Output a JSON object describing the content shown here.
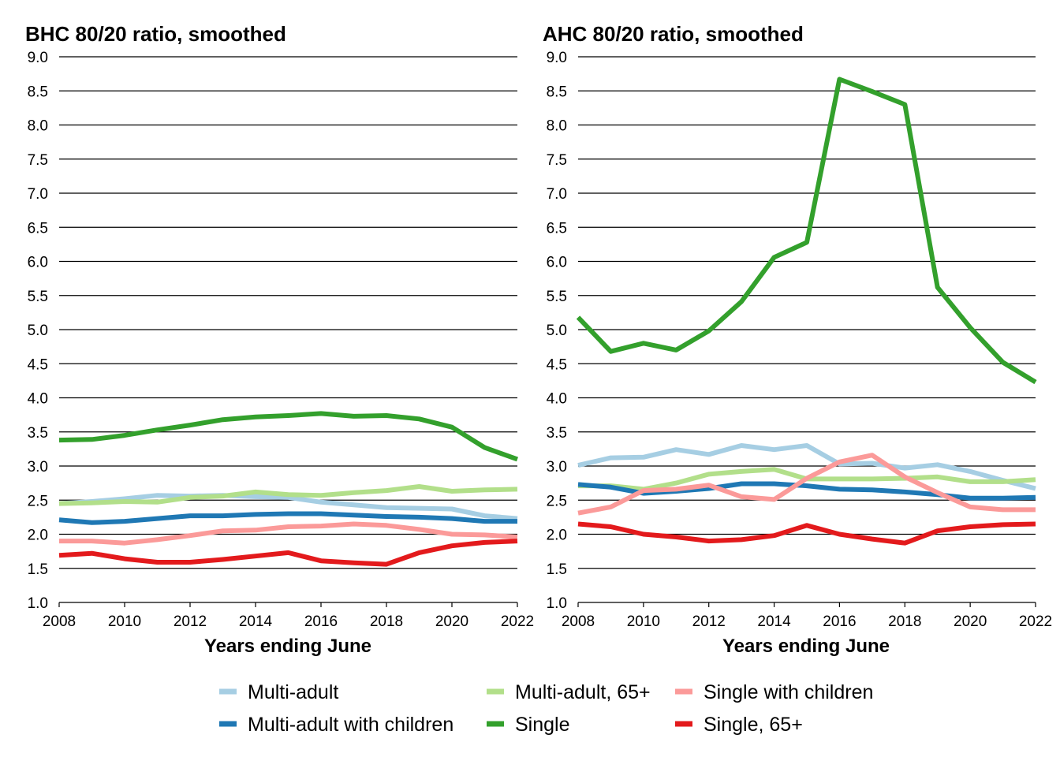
{
  "chart_data": [
    {
      "type": "line",
      "title": "BHC 80/20 ratio, smoothed",
      "xlabel": "Years ending June",
      "ylabel": "",
      "xlim": [
        2008,
        2022
      ],
      "ylim": [
        1.0,
        9.0
      ],
      "x_ticks": [
        "2008",
        "2010",
        "2012",
        "2014",
        "2016",
        "2018",
        "2020",
        "2022"
      ],
      "y_ticks": [
        "1.0",
        "1.5",
        "2.0",
        "2.5",
        "3.0",
        "3.5",
        "4.0",
        "4.5",
        "5.0",
        "5.5",
        "6.0",
        "6.5",
        "7.0",
        "7.5",
        "8.0",
        "8.5",
        "9.0"
      ],
      "grid": "horizontal",
      "x": [
        2008,
        2009,
        2010,
        2011,
        2012,
        2013,
        2014,
        2015,
        2016,
        2017,
        2018,
        2019,
        2020,
        2021,
        2022
      ],
      "series": [
        {
          "name": "Multi-adult",
          "color": "#a6cee3",
          "values": [
            2.45,
            2.48,
            2.52,
            2.57,
            2.56,
            2.57,
            2.55,
            2.54,
            2.47,
            2.43,
            2.39,
            2.38,
            2.37,
            2.27,
            2.23
          ]
        },
        {
          "name": "Multi-adult with children",
          "color": "#1f78b4",
          "values": [
            2.21,
            2.17,
            2.19,
            2.23,
            2.27,
            2.27,
            2.29,
            2.3,
            2.3,
            2.28,
            2.26,
            2.25,
            2.23,
            2.19,
            2.19
          ]
        },
        {
          "name": "Multi-adult, 65+",
          "color": "#b2df8a",
          "values": [
            2.45,
            2.46,
            2.48,
            2.47,
            2.54,
            2.56,
            2.62,
            2.58,
            2.57,
            2.61,
            2.64,
            2.7,
            2.63,
            2.65,
            2.66
          ]
        },
        {
          "name": "Single",
          "color": "#33a02c",
          "values": [
            3.38,
            3.39,
            3.45,
            3.53,
            3.6,
            3.68,
            3.72,
            3.74,
            3.77,
            3.73,
            3.74,
            3.69,
            3.57,
            3.27,
            3.1
          ]
        },
        {
          "name": "Single with children",
          "color": "#fb9a99",
          "values": [
            1.9,
            1.9,
            1.87,
            1.92,
            1.98,
            2.05,
            2.06,
            2.11,
            2.12,
            2.15,
            2.13,
            2.07,
            2.0,
            1.99,
            1.96
          ]
        },
        {
          "name": "Single, 65+",
          "color": "#e31a1c",
          "values": [
            1.69,
            1.72,
            1.64,
            1.59,
            1.59,
            1.63,
            1.68,
            1.73,
            1.61,
            1.58,
            1.56,
            1.73,
            1.83,
            1.88,
            1.9
          ]
        }
      ]
    },
    {
      "type": "line",
      "title": "AHC 80/20 ratio, smoothed",
      "xlabel": "Years ending June",
      "ylabel": "",
      "xlim": [
        2008,
        2022
      ],
      "ylim": [
        1.0,
        9.0
      ],
      "x_ticks": [
        "2008",
        "2010",
        "2012",
        "2014",
        "2016",
        "2018",
        "2020",
        "2022"
      ],
      "y_ticks": [
        "1.0",
        "1.5",
        "2.0",
        "2.5",
        "3.0",
        "3.5",
        "4.0",
        "4.5",
        "5.0",
        "5.5",
        "6.0",
        "6.5",
        "7.0",
        "7.5",
        "8.0",
        "8.5",
        "9.0"
      ],
      "grid": "horizontal",
      "x": [
        2008,
        2009,
        2010,
        2011,
        2012,
        2013,
        2014,
        2015,
        2016,
        2017,
        2018,
        2019,
        2020,
        2021,
        2022
      ],
      "series": [
        {
          "name": "Multi-adult",
          "color": "#a6cee3",
          "values": [
            3.01,
            3.12,
            3.13,
            3.24,
            3.17,
            3.3,
            3.24,
            3.3,
            3.03,
            3.04,
            2.97,
            3.02,
            2.92,
            2.79,
            2.67
          ]
        },
        {
          "name": "Multi-adult with children",
          "color": "#1f78b4",
          "values": [
            2.73,
            2.69,
            2.6,
            2.63,
            2.67,
            2.74,
            2.74,
            2.71,
            2.66,
            2.65,
            2.62,
            2.58,
            2.53,
            2.53,
            2.54
          ]
        },
        {
          "name": "Multi-adult, 65+",
          "color": "#b2df8a",
          "values": [
            2.71,
            2.71,
            2.66,
            2.75,
            2.88,
            2.92,
            2.95,
            2.81,
            2.81,
            2.81,
            2.82,
            2.84,
            2.77,
            2.77,
            2.8
          ]
        },
        {
          "name": "Single",
          "color": "#33a02c",
          "values": [
            5.18,
            4.68,
            4.8,
            4.7,
            4.98,
            5.41,
            6.06,
            6.28,
            8.67,
            8.49,
            8.3,
            5.62,
            5.03,
            4.52,
            4.23
          ]
        },
        {
          "name": "Single with children",
          "color": "#fb9a99",
          "values": [
            2.31,
            2.4,
            2.64,
            2.66,
            2.72,
            2.55,
            2.51,
            2.82,
            3.06,
            3.16,
            2.84,
            2.61,
            2.4,
            2.36,
            2.36
          ]
        },
        {
          "name": "Single, 65+",
          "color": "#e31a1c",
          "values": [
            2.15,
            2.11,
            2.0,
            1.96,
            1.9,
            1.92,
            1.98,
            2.13,
            2.0,
            1.93,
            1.87,
            2.05,
            2.11,
            2.14,
            2.15
          ]
        }
      ]
    }
  ],
  "legend": {
    "placement": "bottom",
    "items": [
      {
        "label": "Multi-adult",
        "color": "#a6cee3"
      },
      {
        "label": "Multi-adult, 65+",
        "color": "#b2df8a"
      },
      {
        "label": "Single with children",
        "color": "#fb9a99"
      },
      {
        "label": "Multi-adult with children",
        "color": "#1f78b4"
      },
      {
        "label": "Single",
        "color": "#33a02c"
      },
      {
        "label": "Single, 65+",
        "color": "#e31a1c"
      }
    ]
  }
}
